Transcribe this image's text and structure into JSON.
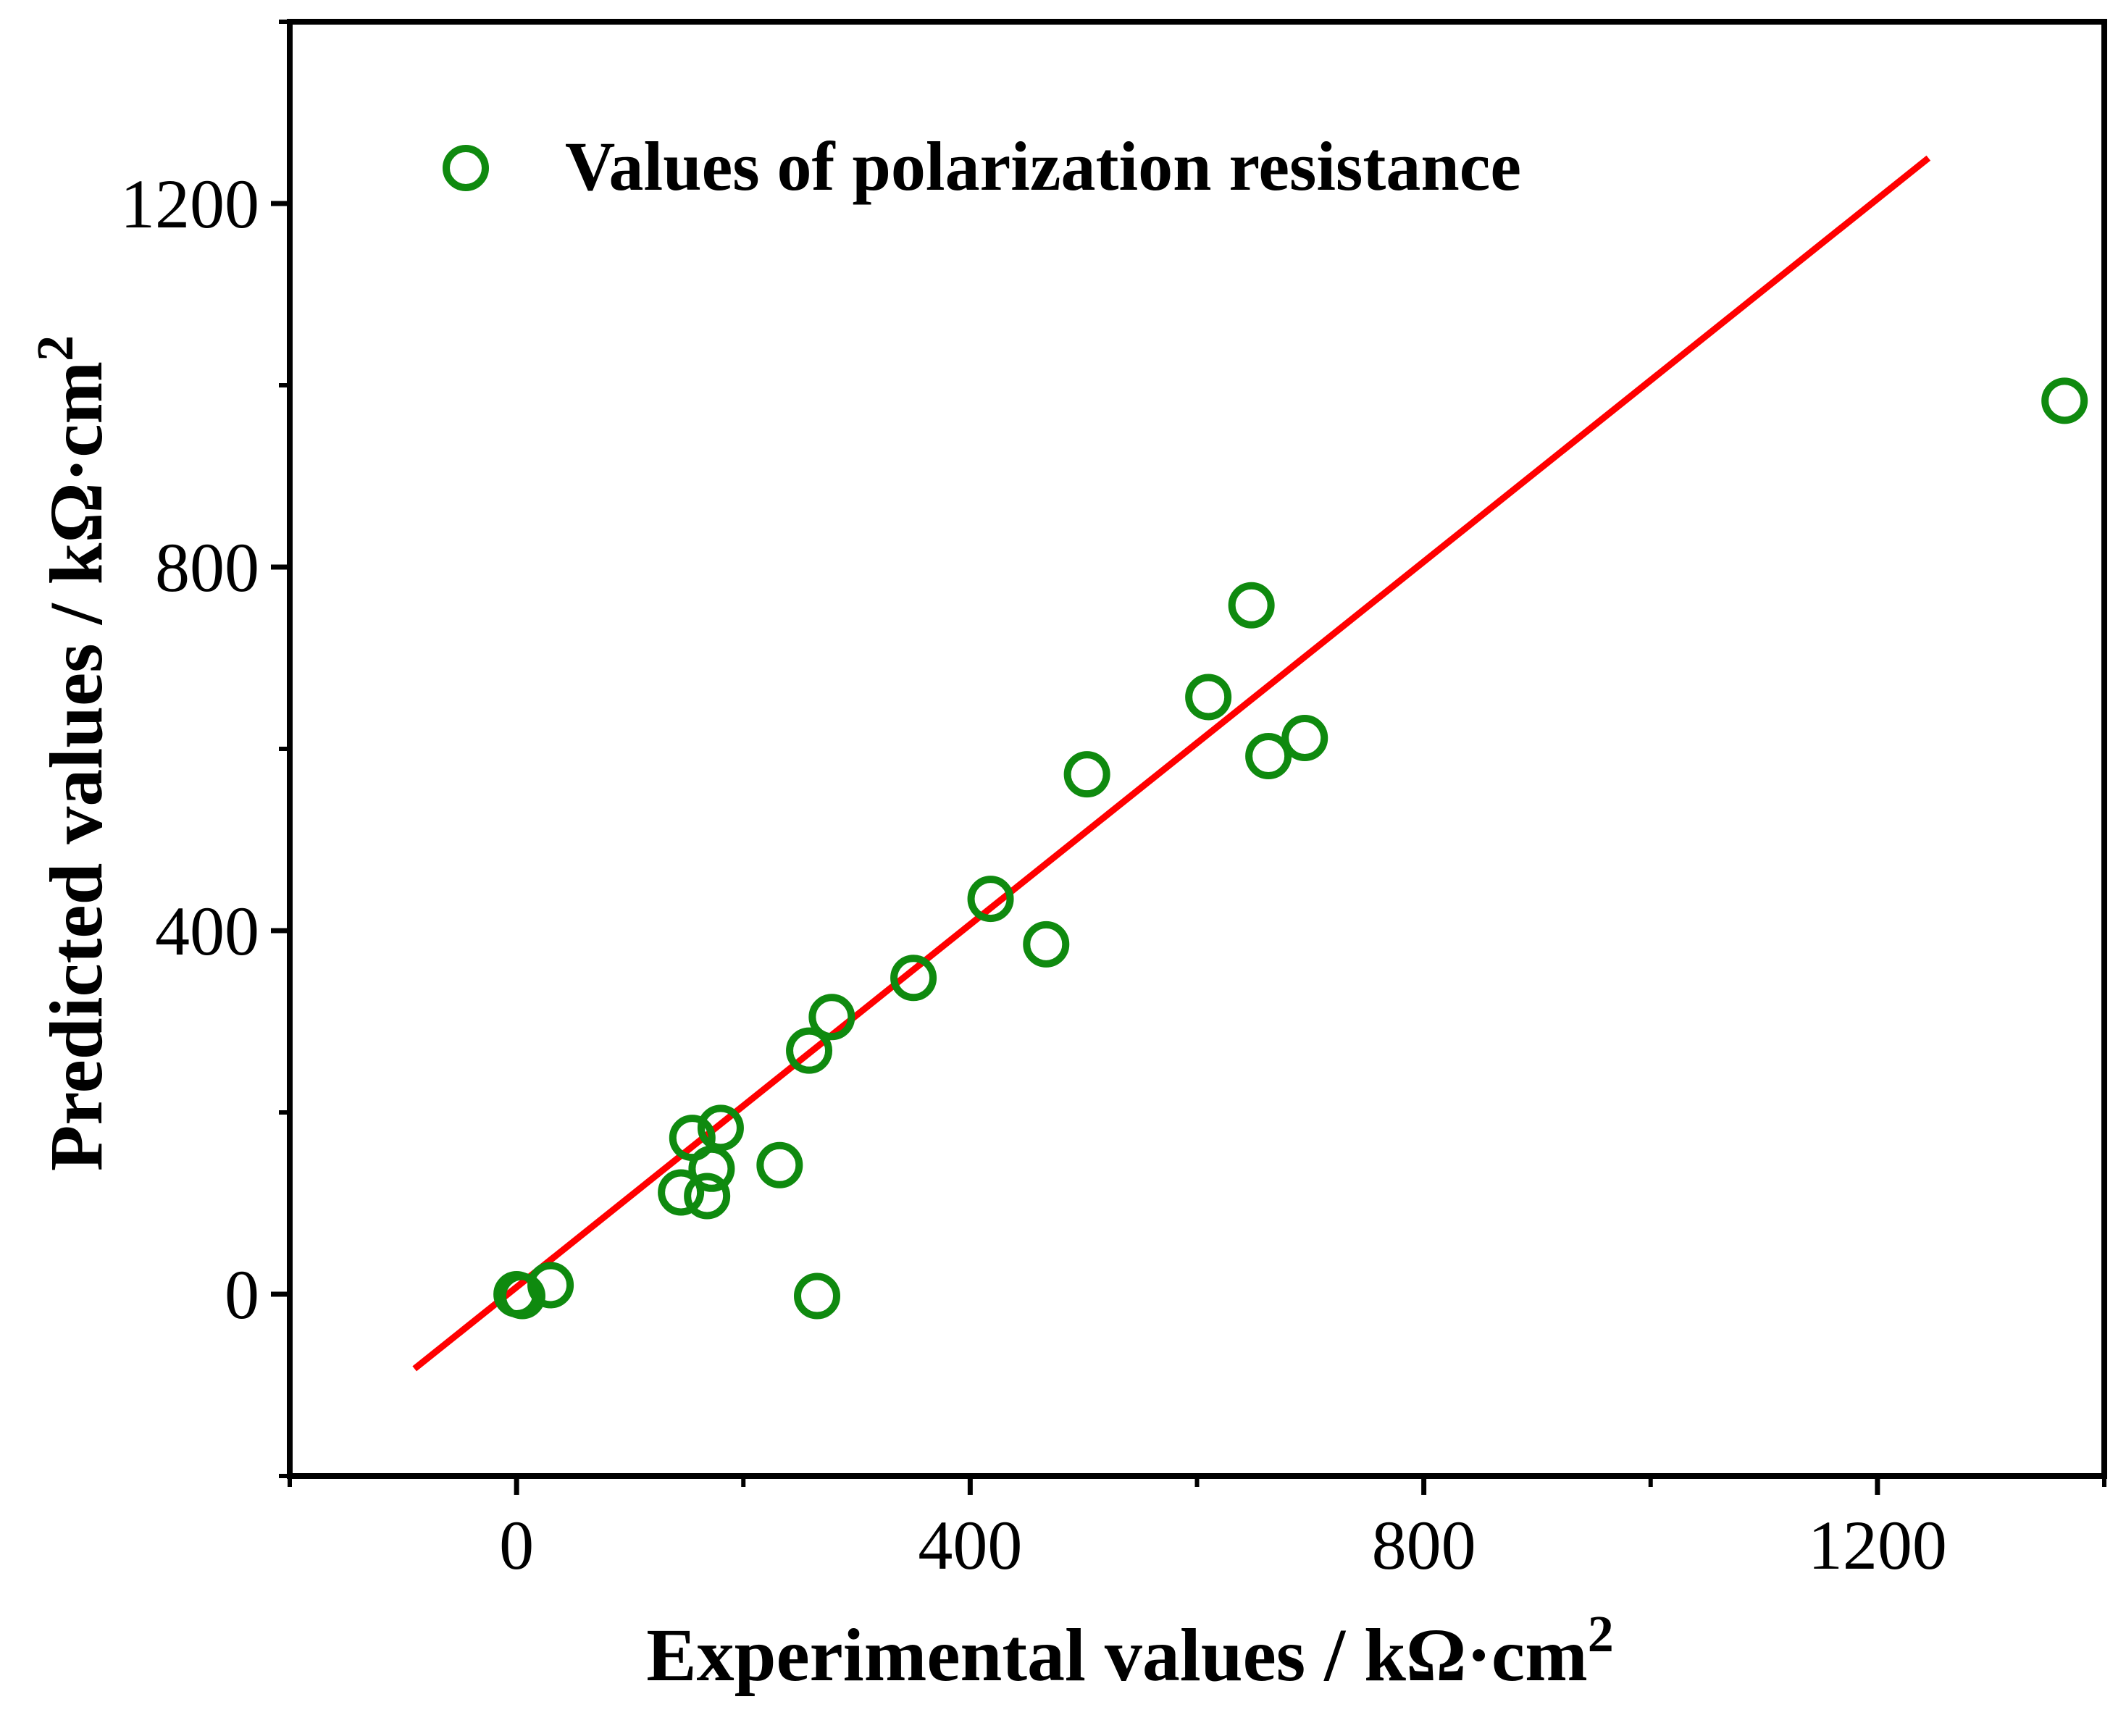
{
  "chart_data": {
    "type": "scatter",
    "xlabel": "Experimental values  / kΩ·cm",
    "xlabel_sup": "2",
    "ylabel": "Predicted values  / kΩ·cm",
    "ylabel_sup": "2",
    "xlim": [
      -200,
      1400
    ],
    "ylim": [
      -200,
      1400
    ],
    "xticks": [
      0,
      400,
      800,
      1200
    ],
    "yticks": [
      0,
      400,
      800,
      1200
    ],
    "xtick_labels": [
      "0",
      "400",
      "800",
      "1200"
    ],
    "ytick_labels": [
      "0",
      "400",
      "800",
      "1200"
    ],
    "x_minor_ticks": [
      -200,
      200,
      600,
      1000,
      1400
    ],
    "y_minor_ticks": [
      -200,
      200,
      600,
      1000,
      1400
    ],
    "grid": false,
    "legend_position": "top-left",
    "series": [
      {
        "name": "Values of polarization resistance",
        "type": "scatter",
        "marker": "open-circle",
        "color": "#0f8a0f",
        "points": [
          {
            "x": 0,
            "y": 0
          },
          {
            "x": 5,
            "y": -2
          },
          {
            "x": 30,
            "y": 10
          },
          {
            "x": 145,
            "y": 112
          },
          {
            "x": 155,
            "y": 172
          },
          {
            "x": 168,
            "y": 108
          },
          {
            "x": 172,
            "y": 138
          },
          {
            "x": 180,
            "y": 183
          },
          {
            "x": 232,
            "y": 142
          },
          {
            "x": 258,
            "y": 268
          },
          {
            "x": 265,
            "y": -2
          },
          {
            "x": 278,
            "y": 305
          },
          {
            "x": 350,
            "y": 348
          },
          {
            "x": 418,
            "y": 435
          },
          {
            "x": 467,
            "y": 385
          },
          {
            "x": 503,
            "y": 572
          },
          {
            "x": 610,
            "y": 657
          },
          {
            "x": 648,
            "y": 758
          },
          {
            "x": 663,
            "y": 592
          },
          {
            "x": 695,
            "y": 612
          },
          {
            "x": 1365,
            "y": 983
          }
        ]
      },
      {
        "name": "",
        "type": "line",
        "color": "#ff0000",
        "points": [
          {
            "x": -90,
            "y": -82
          },
          {
            "x": 1245,
            "y": 1250
          }
        ]
      }
    ]
  }
}
